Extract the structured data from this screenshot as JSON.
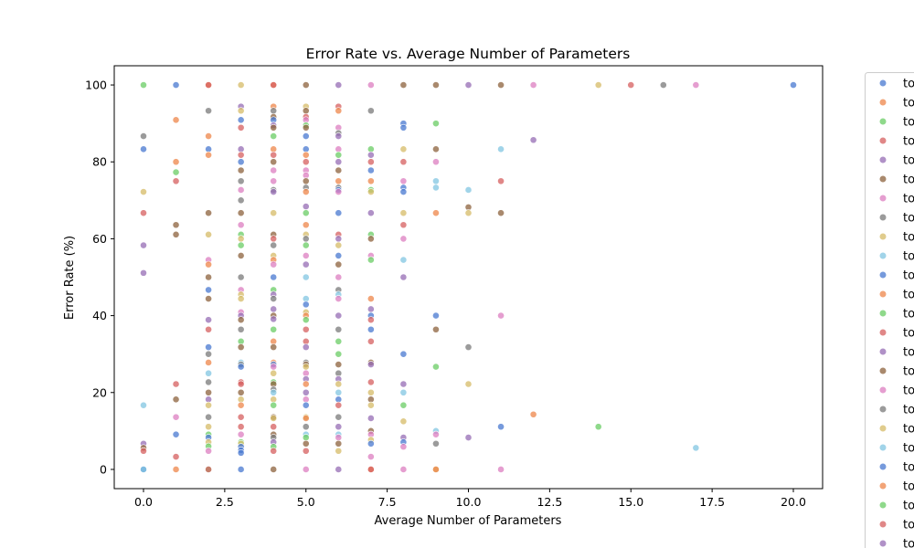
{
  "chart_data": {
    "type": "scatter",
    "title": "Error Rate vs. Average Number of Parameters",
    "xlabel": "Average Number of Parameters",
    "ylabel": "Error Rate (%)",
    "xlim": [
      -0.9,
      20.9
    ],
    "ylim": [
      -5,
      105
    ],
    "xticks": [
      "0.0",
      "2.5",
      "5.0",
      "7.5",
      "10.0",
      "12.5",
      "15.0",
      "17.5",
      "20.0"
    ],
    "xtick_values": [
      0,
      2.5,
      5,
      7.5,
      10,
      12.5,
      15,
      17.5,
      20
    ],
    "yticks": [
      "0",
      "20",
      "40",
      "60",
      "80",
      "100"
    ],
    "ytick_values": [
      0,
      20,
      40,
      60,
      80,
      100
    ],
    "grid": false,
    "legend_position": "right, outside plot (clipped)",
    "palette": [
      "#4878d0",
      "#ee854a",
      "#6acc64",
      "#d65f5f",
      "#956cb4",
      "#8c613c",
      "#dc7ec0",
      "#797979",
      "#d5bb67",
      "#82c6e2"
    ],
    "legend": [
      "to",
      "to",
      "to",
      "to",
      "to",
      "to",
      "to",
      "to",
      "to",
      "to",
      "to",
      "to",
      "to",
      "to",
      "to",
      "to",
      "to",
      "to",
      "to",
      "to",
      "to",
      "to",
      "to",
      "to",
      "to"
    ],
    "points": [
      [
        0,
        100,
        2
      ],
      [
        0,
        86.7,
        7
      ],
      [
        0,
        83.3,
        0
      ],
      [
        0,
        72.2,
        8
      ],
      [
        0,
        66.7,
        3
      ],
      [
        0,
        58.3,
        4
      ],
      [
        0,
        51.1,
        4
      ],
      [
        0,
        16.7,
        9
      ],
      [
        0,
        6.7,
        4
      ],
      [
        0,
        5.6,
        5
      ],
      [
        0,
        4.8,
        3
      ],
      [
        0,
        0,
        0
      ],
      [
        0,
        0,
        9
      ],
      [
        1,
        100,
        0
      ],
      [
        1,
        90.9,
        1
      ],
      [
        1,
        80,
        1
      ],
      [
        1,
        77.3,
        2
      ],
      [
        1,
        75,
        3
      ],
      [
        1,
        63.6,
        5
      ],
      [
        1,
        61.1,
        5
      ],
      [
        1,
        22.2,
        3
      ],
      [
        1,
        18.2,
        5
      ],
      [
        1,
        13.6,
        6
      ],
      [
        1,
        9.1,
        0
      ],
      [
        1,
        3.3,
        3
      ],
      [
        1,
        0,
        1
      ],
      [
        2,
        100,
        1
      ],
      [
        2,
        100,
        3
      ],
      [
        2,
        93.3,
        7
      ],
      [
        2,
        86.7,
        1
      ],
      [
        2,
        83.3,
        0
      ],
      [
        2,
        81.8,
        1
      ],
      [
        2,
        66.7,
        5
      ],
      [
        2,
        61.1,
        8
      ],
      [
        2,
        54.5,
        6
      ],
      [
        2,
        53.3,
        1
      ],
      [
        2,
        50,
        5
      ],
      [
        2,
        46.7,
        0
      ],
      [
        2,
        44.4,
        5
      ],
      [
        2,
        38.9,
        4
      ],
      [
        2,
        36.4,
        3
      ],
      [
        2,
        31.8,
        0
      ],
      [
        2,
        30,
        7
      ],
      [
        2,
        27.8,
        1
      ],
      [
        2,
        25,
        9
      ],
      [
        2,
        22.7,
        7
      ],
      [
        2,
        20,
        5
      ],
      [
        2,
        18.2,
        4
      ],
      [
        2,
        16.7,
        8
      ],
      [
        2,
        13.6,
        7
      ],
      [
        2,
        11.1,
        8
      ],
      [
        2,
        9.1,
        2
      ],
      [
        2,
        8.3,
        0
      ],
      [
        2,
        7.1,
        8
      ],
      [
        2,
        6,
        2
      ],
      [
        2,
        4.8,
        6
      ],
      [
        2,
        0,
        2
      ],
      [
        2,
        0,
        3
      ],
      [
        3,
        100,
        8
      ],
      [
        3,
        94.4,
        4
      ],
      [
        3,
        93.3,
        8
      ],
      [
        3,
        90.9,
        0
      ],
      [
        3,
        88.9,
        3
      ],
      [
        3,
        83.3,
        4
      ],
      [
        3,
        81.8,
        3
      ],
      [
        3,
        80,
        0
      ],
      [
        3,
        77.8,
        5
      ],
      [
        3,
        75,
        7
      ],
      [
        3,
        72.7,
        6
      ],
      [
        3,
        70,
        7
      ],
      [
        3,
        66.7,
        5
      ],
      [
        3,
        63.6,
        6
      ],
      [
        3,
        61.1,
        2
      ],
      [
        3,
        60,
        8
      ],
      [
        3,
        58.3,
        2
      ],
      [
        3,
        55.6,
        5
      ],
      [
        3,
        50,
        7
      ],
      [
        3,
        46.7,
        6
      ],
      [
        3,
        45.5,
        8
      ],
      [
        3,
        44.4,
        8
      ],
      [
        3,
        40.9,
        6
      ],
      [
        3,
        40,
        4
      ],
      [
        3,
        38.9,
        5
      ],
      [
        3,
        36.4,
        7
      ],
      [
        3,
        33.3,
        2
      ],
      [
        3,
        31.8,
        5
      ],
      [
        3,
        27.8,
        9
      ],
      [
        3,
        27.3,
        7
      ],
      [
        3,
        26.7,
        0
      ],
      [
        3,
        22.7,
        3
      ],
      [
        3,
        22.2,
        3
      ],
      [
        3,
        20,
        5
      ],
      [
        3,
        18.2,
        8
      ],
      [
        3,
        16.7,
        1
      ],
      [
        3,
        13.6,
        3
      ],
      [
        3,
        11.1,
        3
      ],
      [
        3,
        9.1,
        6
      ],
      [
        3,
        7.1,
        2
      ],
      [
        3,
        6.7,
        8
      ],
      [
        3,
        5.9,
        0
      ],
      [
        3,
        5,
        0
      ],
      [
        3,
        4.3,
        0
      ],
      [
        3,
        0,
        0
      ],
      [
        4,
        100,
        1
      ],
      [
        4,
        100,
        3
      ],
      [
        4,
        94.4,
        1
      ],
      [
        4,
        93.3,
        7
      ],
      [
        4,
        91.7,
        5
      ],
      [
        4,
        90.9,
        0
      ],
      [
        4,
        89.5,
        4
      ],
      [
        4,
        88.9,
        5
      ],
      [
        4,
        86.7,
        2
      ],
      [
        4,
        83.3,
        1
      ],
      [
        4,
        81.8,
        3
      ],
      [
        4,
        80,
        5
      ],
      [
        4,
        77.8,
        6
      ],
      [
        4,
        75,
        6
      ],
      [
        4,
        72.7,
        7
      ],
      [
        4,
        72.2,
        4
      ],
      [
        4,
        66.7,
        8
      ],
      [
        4,
        61.1,
        5
      ],
      [
        4,
        60,
        3
      ],
      [
        4,
        58.3,
        7
      ],
      [
        4,
        55.6,
        8
      ],
      [
        4,
        54.5,
        1
      ],
      [
        4,
        53.3,
        6
      ],
      [
        4,
        50,
        0
      ],
      [
        4,
        46.7,
        2
      ],
      [
        4,
        45.5,
        4
      ],
      [
        4,
        44.4,
        7
      ],
      [
        4,
        41.7,
        4
      ],
      [
        4,
        40,
        5
      ],
      [
        4,
        39.1,
        4
      ],
      [
        4,
        36.4,
        2
      ],
      [
        4,
        33.3,
        1
      ],
      [
        4,
        31.8,
        5
      ],
      [
        4,
        27.8,
        1
      ],
      [
        4,
        27.3,
        0
      ],
      [
        4,
        26.7,
        6
      ],
      [
        4,
        25,
        8
      ],
      [
        4,
        22.7,
        2
      ],
      [
        4,
        22.2,
        5
      ],
      [
        4,
        20.8,
        7
      ],
      [
        4,
        20,
        9
      ],
      [
        4,
        18.2,
        8
      ],
      [
        4,
        16.7,
        2
      ],
      [
        4,
        13.6,
        5
      ],
      [
        4,
        13.3,
        8
      ],
      [
        4,
        11.1,
        3
      ],
      [
        4,
        9.1,
        5
      ],
      [
        4,
        8.3,
        7
      ],
      [
        4,
        7.1,
        4
      ],
      [
        4,
        5.9,
        2
      ],
      [
        4,
        4.8,
        3
      ],
      [
        4,
        0,
        5
      ],
      [
        5,
        100,
        5
      ],
      [
        5,
        94.4,
        8
      ],
      [
        5,
        93.3,
        5
      ],
      [
        5,
        91.7,
        3
      ],
      [
        5,
        90.9,
        6
      ],
      [
        5,
        89.5,
        2
      ],
      [
        5,
        88.9,
        5
      ],
      [
        5,
        86.7,
        0
      ],
      [
        5,
        83.3,
        0
      ],
      [
        5,
        81.8,
        1
      ],
      [
        5,
        80,
        3
      ],
      [
        5,
        77.8,
        6
      ],
      [
        5,
        76.5,
        6
      ],
      [
        5,
        75,
        5
      ],
      [
        5,
        73.3,
        7
      ],
      [
        5,
        72.2,
        1
      ],
      [
        5,
        68.4,
        4
      ],
      [
        5,
        66.7,
        2
      ],
      [
        5,
        63.6,
        1
      ],
      [
        5,
        61.1,
        8
      ],
      [
        5,
        60,
        7
      ],
      [
        5,
        58.3,
        2
      ],
      [
        5,
        55.6,
        6
      ],
      [
        5,
        53.3,
        4
      ],
      [
        5,
        50,
        9
      ],
      [
        5,
        44.4,
        9
      ],
      [
        5,
        42.9,
        0
      ],
      [
        5,
        40.9,
        8
      ],
      [
        5,
        40,
        1
      ],
      [
        5,
        38.9,
        2
      ],
      [
        5,
        36.4,
        3
      ],
      [
        5,
        33.3,
        3
      ],
      [
        5,
        31.8,
        4
      ],
      [
        5,
        27.8,
        7
      ],
      [
        5,
        27.3,
        5
      ],
      [
        5,
        26.7,
        8
      ],
      [
        5,
        25,
        6
      ],
      [
        5,
        23.5,
        4
      ],
      [
        5,
        22.2,
        1
      ],
      [
        5,
        20,
        4
      ],
      [
        5,
        18.2,
        6
      ],
      [
        5,
        16.7,
        0
      ],
      [
        5,
        13.6,
        8
      ],
      [
        5,
        13.3,
        1
      ],
      [
        5,
        11.1,
        7
      ],
      [
        5,
        9.1,
        9
      ],
      [
        5,
        8.3,
        2
      ],
      [
        5,
        6.7,
        5
      ],
      [
        5,
        4.8,
        3
      ],
      [
        5,
        0,
        6
      ],
      [
        6,
        100,
        4
      ],
      [
        6,
        94.4,
        3
      ],
      [
        6,
        93.3,
        1
      ],
      [
        6,
        88.9,
        6
      ],
      [
        6,
        87.5,
        7
      ],
      [
        6,
        86.7,
        4
      ],
      [
        6,
        83.3,
        6
      ],
      [
        6,
        81.8,
        2
      ],
      [
        6,
        80,
        4
      ],
      [
        6,
        77.8,
        5
      ],
      [
        6,
        75,
        1
      ],
      [
        6,
        73.3,
        7
      ],
      [
        6,
        72.7,
        0
      ],
      [
        6,
        72.2,
        6
      ],
      [
        6,
        66.7,
        0
      ],
      [
        6,
        61.1,
        3
      ],
      [
        6,
        60,
        4
      ],
      [
        6,
        58.3,
        8
      ],
      [
        6,
        55.6,
        0
      ],
      [
        6,
        53.3,
        5
      ],
      [
        6,
        50,
        6
      ],
      [
        6,
        46.7,
        7
      ],
      [
        6,
        45.5,
        9
      ],
      [
        6,
        44.4,
        6
      ],
      [
        6,
        40,
        4
      ],
      [
        6,
        36.4,
        7
      ],
      [
        6,
        33.3,
        2
      ],
      [
        6,
        30,
        2
      ],
      [
        6,
        27.3,
        5
      ],
      [
        6,
        25,
        7
      ],
      [
        6,
        23.5,
        4
      ],
      [
        6,
        22.2,
        8
      ],
      [
        6,
        20,
        9
      ],
      [
        6,
        18.2,
        0
      ],
      [
        6,
        16.7,
        3
      ],
      [
        6,
        13.6,
        7
      ],
      [
        6,
        11.1,
        4
      ],
      [
        6,
        9.1,
        9
      ],
      [
        6,
        8.3,
        6
      ],
      [
        6,
        6.7,
        5
      ],
      [
        6,
        4.8,
        8
      ],
      [
        6,
        0,
        4
      ],
      [
        7,
        100,
        6
      ],
      [
        7,
        93.3,
        7
      ],
      [
        7,
        83.3,
        2
      ],
      [
        7,
        81.8,
        4
      ],
      [
        7,
        80,
        3
      ],
      [
        7,
        77.8,
        0
      ],
      [
        7,
        75,
        1
      ],
      [
        7,
        72.7,
        2
      ],
      [
        7,
        72.2,
        8
      ],
      [
        7,
        66.7,
        4
      ],
      [
        7,
        61.1,
        2
      ],
      [
        7,
        60,
        5
      ],
      [
        7,
        55.6,
        6
      ],
      [
        7,
        54.5,
        2
      ],
      [
        7,
        44.4,
        1
      ],
      [
        7,
        41.7,
        4
      ],
      [
        7,
        40,
        0
      ],
      [
        7,
        38.9,
        3
      ],
      [
        7,
        36.4,
        0
      ],
      [
        7,
        33.3,
        3
      ],
      [
        7,
        27.8,
        5
      ],
      [
        7,
        27.3,
        4
      ],
      [
        7,
        22.7,
        3
      ],
      [
        7,
        20,
        8
      ],
      [
        7,
        18.2,
        5
      ],
      [
        7,
        16.7,
        8
      ],
      [
        7,
        13.3,
        4
      ],
      [
        7,
        10,
        5
      ],
      [
        7,
        9.1,
        6
      ],
      [
        7,
        7.7,
        8
      ],
      [
        7,
        6.7,
        0
      ],
      [
        7,
        3.3,
        6
      ],
      [
        7,
        0,
        1
      ],
      [
        7,
        0,
        3
      ],
      [
        8,
        100,
        5
      ],
      [
        8,
        90,
        0
      ],
      [
        8,
        88.9,
        0
      ],
      [
        8,
        83.3,
        8
      ],
      [
        8,
        80,
        3
      ],
      [
        8,
        75,
        6
      ],
      [
        8,
        73.3,
        0
      ],
      [
        8,
        72.2,
        0
      ],
      [
        8,
        66.7,
        8
      ],
      [
        8,
        63.6,
        3
      ],
      [
        8,
        60,
        6
      ],
      [
        8,
        54.5,
        9
      ],
      [
        8,
        50,
        4
      ],
      [
        8,
        30,
        0
      ],
      [
        8,
        22.2,
        4
      ],
      [
        8,
        20,
        9
      ],
      [
        8,
        16.7,
        2
      ],
      [
        8,
        12.5,
        8
      ],
      [
        8,
        8.3,
        4
      ],
      [
        8,
        7.1,
        0
      ],
      [
        8,
        5.9,
        6
      ],
      [
        8,
        0,
        6
      ],
      [
        9,
        100,
        5
      ],
      [
        9,
        90,
        2
      ],
      [
        9,
        83.3,
        5
      ],
      [
        9,
        80,
        6
      ],
      [
        9,
        75,
        9
      ],
      [
        9,
        73.3,
        9
      ],
      [
        9,
        66.7,
        1
      ],
      [
        9,
        40,
        0
      ],
      [
        9,
        36.4,
        5
      ],
      [
        9,
        26.7,
        2
      ],
      [
        9,
        10,
        9
      ],
      [
        9,
        9.1,
        6
      ],
      [
        9,
        6.7,
        7
      ],
      [
        9,
        0,
        8
      ],
      [
        9,
        0,
        1
      ],
      [
        10,
        100,
        4
      ],
      [
        10,
        72.7,
        9
      ],
      [
        10,
        68.2,
        5
      ],
      [
        10,
        66.7,
        8
      ],
      [
        10,
        31.8,
        7
      ],
      [
        10,
        22.2,
        8
      ],
      [
        10,
        8.3,
        4
      ],
      [
        11,
        100,
        5
      ],
      [
        11,
        83.3,
        9
      ],
      [
        11,
        75,
        3
      ],
      [
        11,
        66.7,
        5
      ],
      [
        11,
        40,
        6
      ],
      [
        11,
        11.1,
        0
      ],
      [
        11,
        0,
        6
      ],
      [
        12,
        100,
        6
      ],
      [
        12,
        85.7,
        4
      ],
      [
        12,
        14.3,
        1
      ],
      [
        14,
        100,
        8
      ],
      [
        14,
        11.1,
        2
      ],
      [
        15,
        100,
        3
      ],
      [
        16,
        100,
        7
      ],
      [
        17,
        100,
        6
      ],
      [
        17,
        5.6,
        9
      ],
      [
        20,
        100,
        0
      ]
    ]
  }
}
